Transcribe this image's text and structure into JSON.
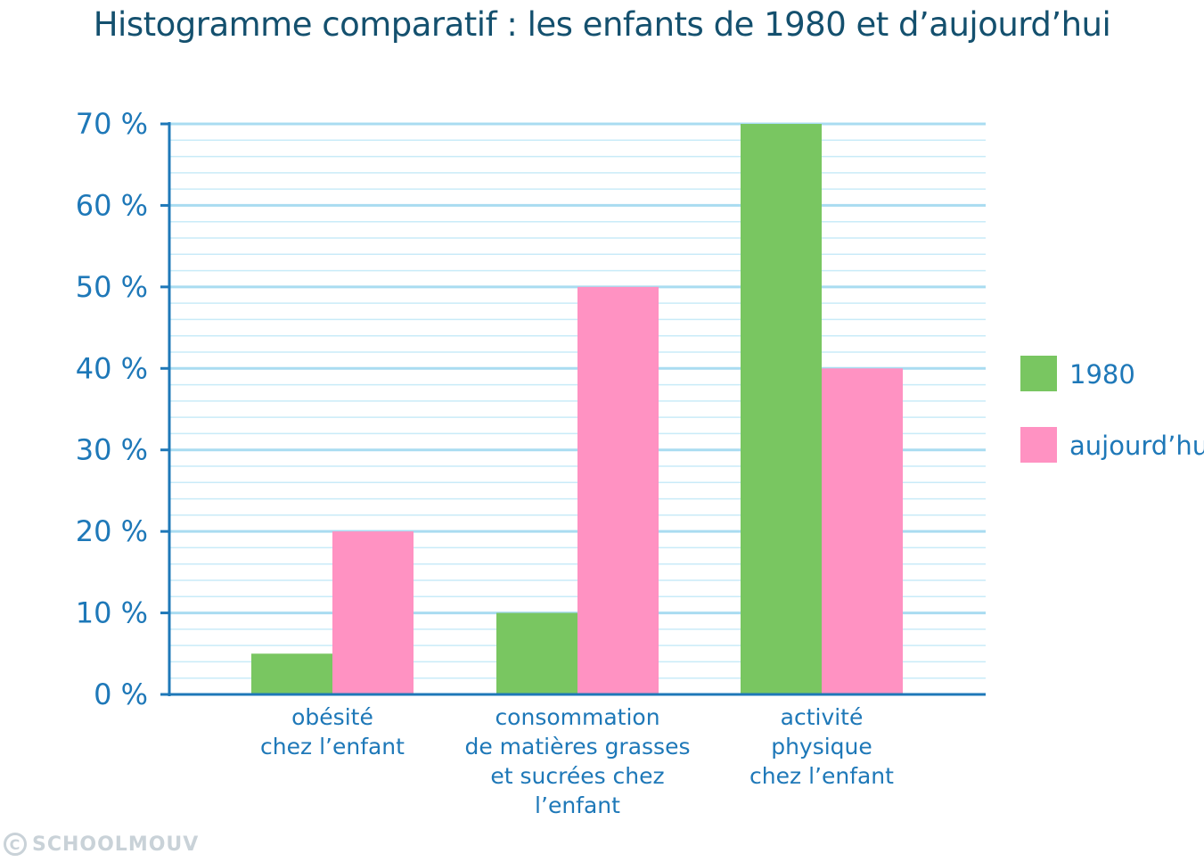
{
  "chart_data": {
    "type": "bar",
    "title": "Histogramme comparatif : les enfants de 1980 et d’aujourd’hui",
    "categories": [
      [
        "obésité",
        "chez l’enfant"
      ],
      [
        "consommation",
        "de matières grasses",
        "et sucrées chez",
        "l’enfant"
      ],
      [
        "activité",
        "physique",
        "chez l’enfant"
      ]
    ],
    "series": [
      {
        "name": "1980",
        "values": [
          5,
          10,
          70
        ],
        "color": "#79c661"
      },
      {
        "name": "aujourd’hui",
        "values": [
          20,
          50,
          40
        ],
        "color": "#ff92c2"
      }
    ],
    "yticks": [
      "0 %",
      "10 %",
      "20 %",
      "30 %",
      "40 %",
      "50 %",
      "60 %",
      "70 %"
    ],
    "ylim": [
      0,
      70
    ],
    "grid": true,
    "legend_position": "right"
  },
  "watermark": {
    "icon": "copyright-icon",
    "symbol": "C",
    "text": "SCHOOLMOUV"
  }
}
